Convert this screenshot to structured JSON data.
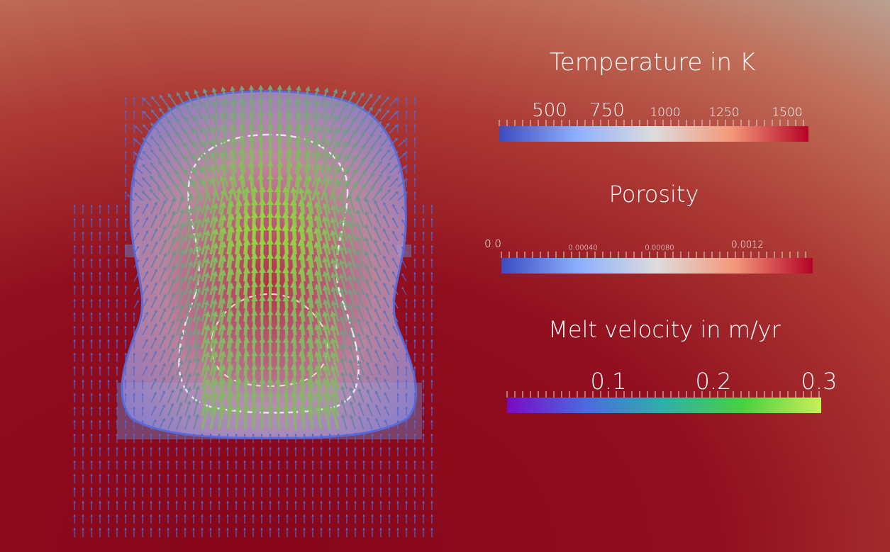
{
  "legends": [
    {
      "title": "Temperature in K",
      "ticks": [
        "500",
        "750",
        "1000",
        "1250",
        "1500"
      ]
    },
    {
      "title": "Porosity",
      "ticks": [
        "0.0",
        "0.00040",
        "0.00080",
        "0.0012"
      ]
    },
    {
      "title": "Melt velocity in m/yr",
      "ticks": [
        "0.1",
        "0.2",
        "0.3"
      ]
    }
  ]
}
